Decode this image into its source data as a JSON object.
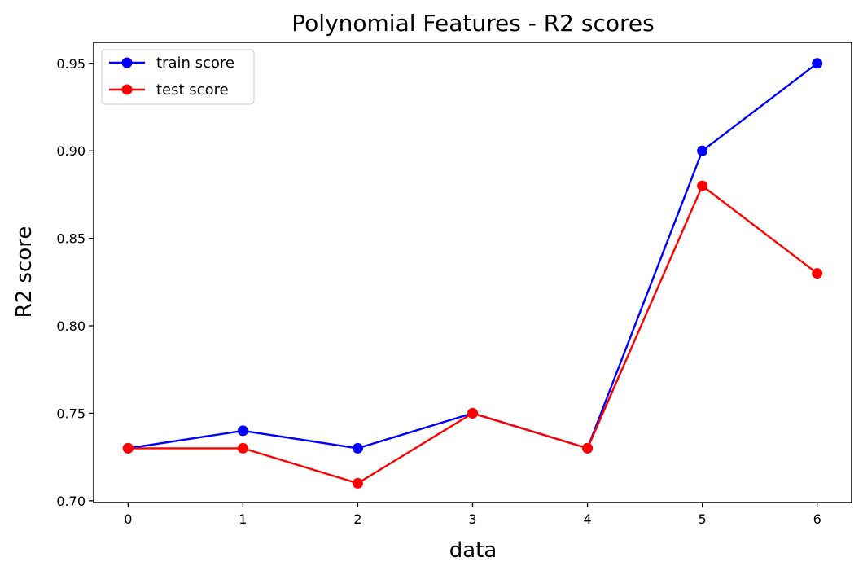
{
  "chart_data": {
    "type": "line",
    "title": "Polynomial Features - R2 scores",
    "xlabel": "data",
    "ylabel": "R2 score",
    "x": [
      0,
      1,
      2,
      3,
      4,
      5,
      6
    ],
    "x_ticks": [
      "0",
      "1",
      "2",
      "3",
      "4",
      "5",
      "6"
    ],
    "y_ticks": [
      "0.70",
      "0.75",
      "0.80",
      "0.85",
      "0.90",
      "0.95"
    ],
    "xlim": [
      -0.3,
      6.3
    ],
    "ylim": [
      0.699,
      0.962
    ],
    "grid": false,
    "legend_position": "top-left",
    "series": [
      {
        "name": "train score",
        "color": "#0000ff",
        "marker": "circle",
        "values": [
          0.73,
          0.74,
          0.73,
          0.75,
          0.73,
          0.9,
          0.95
        ]
      },
      {
        "name": "test score",
        "color": "#ff0000",
        "marker": "circle",
        "values": [
          0.73,
          0.73,
          0.71,
          0.75,
          0.73,
          0.88,
          0.83
        ]
      }
    ]
  }
}
